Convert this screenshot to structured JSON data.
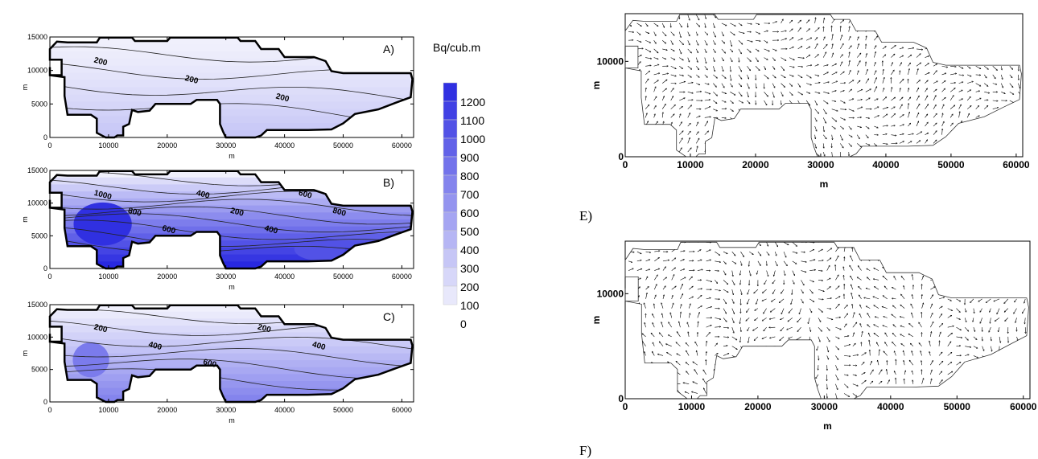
{
  "figure": {
    "panel_labels": [
      "A)",
      "B)",
      "C)"
    ],
    "vector_panel_labels": [
      "E)",
      "F)"
    ],
    "axis_unit": "m"
  },
  "colors": {
    "low": "#f0f0fc",
    "high": "#2828e0",
    "outline": "#000000"
  },
  "chart_data": [
    {
      "type": "heatmap",
      "label": "A)",
      "xlabel": "m",
      "ylabel": "m",
      "xlim": [
        0,
        62000
      ],
      "ylim": [
        0,
        15000
      ],
      "xticks": [
        0,
        10000,
        20000,
        30000,
        40000,
        50000,
        60000
      ],
      "yticks": [
        0,
        5000,
        10000,
        15000
      ],
      "contour_labels": [
        "200",
        "200",
        "200"
      ],
      "max_level": 250
    },
    {
      "type": "heatmap",
      "label": "B)",
      "xlabel": "m",
      "ylabel": "m",
      "xlim": [
        0,
        62000
      ],
      "ylim": [
        0,
        15000
      ],
      "xticks": [
        0,
        10000,
        20000,
        30000,
        40000,
        50000,
        60000
      ],
      "yticks": [
        0,
        5000,
        10000,
        15000
      ],
      "contour_labels": [
        "1000",
        "800",
        "600",
        "400",
        "200",
        "400",
        "600",
        "800"
      ],
      "max_level": 1200
    },
    {
      "type": "heatmap",
      "label": "C)",
      "xlabel": "m",
      "ylabel": "m",
      "xlim": [
        0,
        62000
      ],
      "ylim": [
        0,
        15000
      ],
      "xticks": [
        0,
        10000,
        20000,
        30000,
        40000,
        50000,
        60000
      ],
      "yticks": [
        0,
        5000,
        10000,
        15000
      ],
      "contour_labels": [
        "200",
        "400",
        "600",
        "200",
        "400"
      ],
      "max_level": 650
    },
    {
      "type": "heatmap",
      "label": "legend",
      "legend_title": "Bq/cub.m",
      "levels": [
        1200,
        1100,
        1000,
        900,
        800,
        700,
        600,
        500,
        400,
        300,
        200,
        100,
        0
      ]
    },
    {
      "type": "scatter",
      "label": "E)",
      "xlabel": "m",
      "ylabel": "m",
      "xlim": [
        0,
        61000
      ],
      "ylim": [
        0,
        15000
      ],
      "xticks": [
        0,
        10000,
        20000,
        30000,
        40000,
        50000,
        60000
      ],
      "yticks": [
        0,
        10000
      ]
    },
    {
      "type": "scatter",
      "label": "F)",
      "xlabel": "m",
      "ylabel": "m",
      "xlim": [
        0,
        61000
      ],
      "ylim": [
        0,
        15000
      ],
      "xticks": [
        0,
        10000,
        20000,
        30000,
        40000,
        50000,
        60000
      ],
      "yticks": [
        0,
        10000
      ]
    }
  ]
}
